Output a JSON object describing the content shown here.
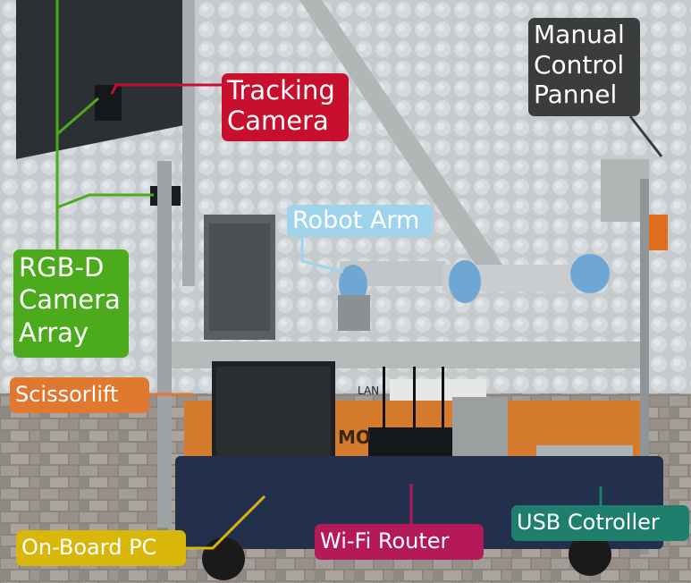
{
  "labels": {
    "tracking_camera": [
      "Tracking",
      "Camera"
    ],
    "manual_control": [
      "Manual",
      "Control",
      "Pannel"
    ],
    "robot_arm": "Robot Arm",
    "rgbd_array": [
      "RGB-D",
      "Camera",
      "Array"
    ],
    "scissorlift": "Scissorlift",
    "onboard_pc": "On-Board PC",
    "wifi_router": "Wi-Fi Router",
    "usb_controller": "USB Cotroller"
  },
  "photo_text": {
    "lift_brand": "MO",
    "lift_sticker": "LAN"
  },
  "colors": {
    "tracking_camera": "#c8102e",
    "manual_control": "#3a3c3d",
    "robot_arm": "#9fd3ec",
    "rgbd_array": "#4bab1c",
    "scissorlift": "#e07830",
    "onboard_pc": "#d8b60a",
    "wifi_router": "#b5195a",
    "usb_controller": "#1e7f6c"
  }
}
